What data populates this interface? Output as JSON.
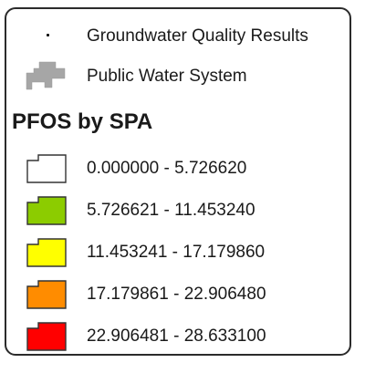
{
  "legend": {
    "point_layer": {
      "label": "Groundwater Quality Results",
      "icon": "point-dot-icon",
      "color": "#111111"
    },
    "area_layer": {
      "label": "Public Water System",
      "icon": "gray-polygon-icon",
      "color": "#a6a6a6"
    },
    "title": "PFOS by SPA",
    "classes": [
      {
        "label": "0.000000 - 5.726620",
        "color": "#ffffff"
      },
      {
        "label": "5.726621 - 11.453240",
        "color": "#8ccc00"
      },
      {
        "label": "11.453241 - 17.179860",
        "color": "#ffff00"
      },
      {
        "label": "17.179861 - 22.906480",
        "color": "#ff8c00"
      },
      {
        "label": "22.906481 - 28.633100",
        "color": "#ff0000"
      }
    ]
  }
}
